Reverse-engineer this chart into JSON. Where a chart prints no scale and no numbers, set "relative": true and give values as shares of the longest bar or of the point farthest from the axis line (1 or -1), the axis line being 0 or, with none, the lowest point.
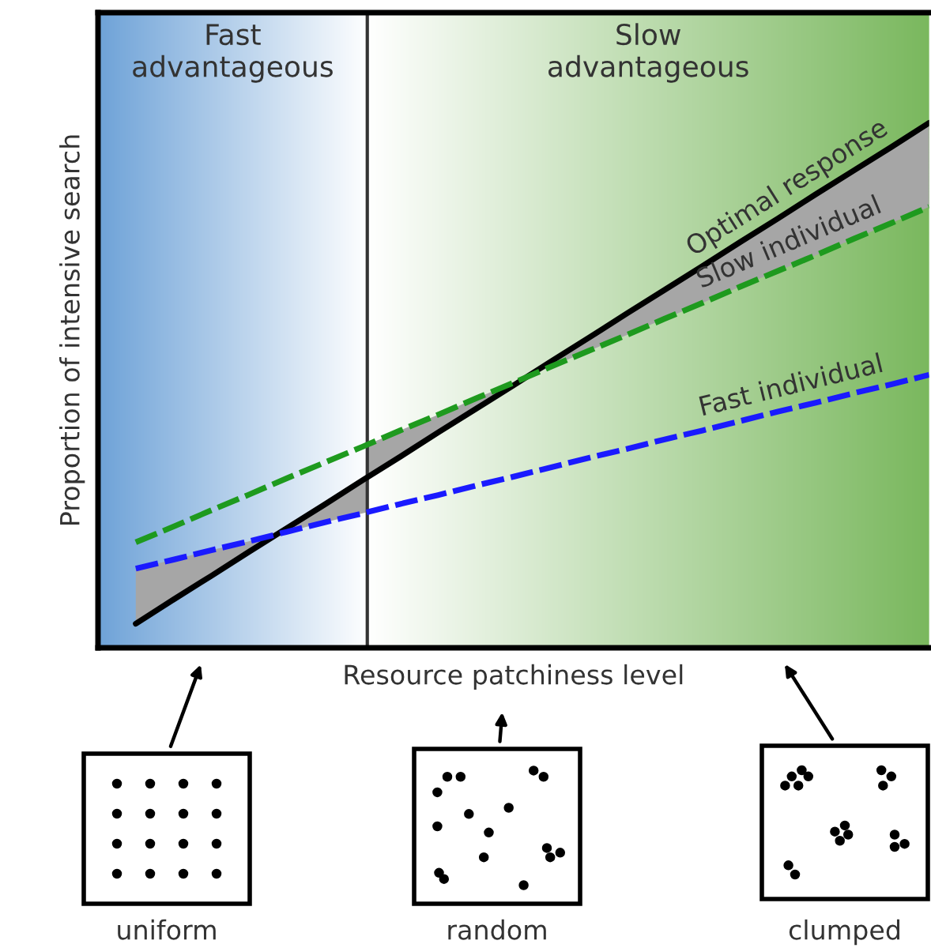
{
  "chart_data": {
    "type": "line",
    "relative": true,
    "xlabel": "Resource patchiness level",
    "ylabel": "Proportion of intensive search",
    "categories": [
      null,
      null,
      null,
      null,
      null,
      null,
      null,
      null,
      null,
      null,
      null,
      null,
      null,
      null,
      null,
      null,
      null,
      null,
      null,
      null,
      null,
      null,
      null
    ],
    "series": [
      {
        "name": "Optimal response",
        "color": "#000000",
        "line_style": "solid",
        "values": [
          null,
          0.046,
          0.092,
          0.137,
          0.183,
          0.228,
          0.273,
          0.319,
          0.364,
          0.41,
          0.455,
          0.5,
          0.546,
          0.591,
          0.637,
          0.682,
          0.727,
          0.773,
          0.818,
          0.864,
          0.909,
          0.954,
          1.0
        ]
      },
      {
        "name": "Slow individual",
        "color": "#1e9a1e",
        "line_style": "dashed",
        "values": [
          null,
          0.201,
          0.231,
          0.262,
          0.292,
          0.323,
          0.353,
          0.383,
          0.414,
          0.444,
          0.475,
          0.505,
          0.536,
          0.566,
          0.596,
          0.627,
          0.657,
          0.688,
          0.718,
          0.748,
          0.779,
          0.809,
          0.84
        ]
      },
      {
        "name": "Fast individual",
        "color": "#1a1aff",
        "line_style": "dashed",
        "values": [
          null,
          0.151,
          0.168,
          0.186,
          0.203,
          0.221,
          0.239,
          0.256,
          0.274,
          0.291,
          0.309,
          0.326,
          0.344,
          0.362,
          0.379,
          0.397,
          0.414,
          0.432,
          0.45,
          0.467,
          0.485,
          0.502,
          0.52
        ]
      }
    ],
    "annotations": [
      "Fast\nadvantageous",
      "Slow\nadvantageous",
      "uniform",
      "random",
      "clumped"
    ]
  }
}
